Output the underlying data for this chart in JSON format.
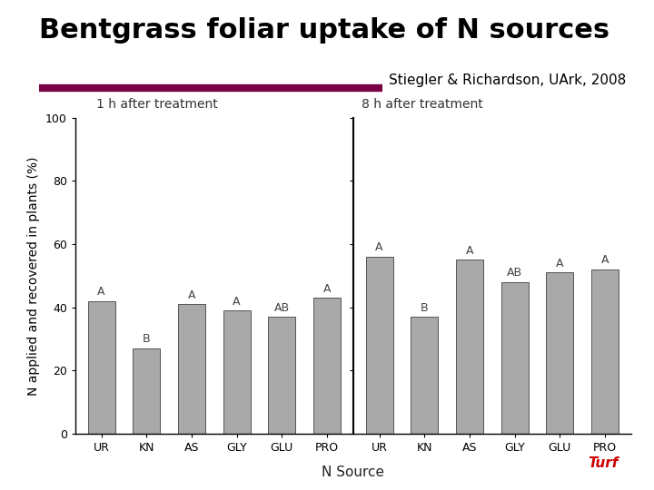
{
  "title": "Bentgrass foliar uptake of N sources",
  "subtitle": "Stiegler & Richardson, UArk, 2008",
  "ylabel": "N applied and recovered in plants (%)",
  "xlabel": "N Source",
  "panel1_label": "1 h after treatment",
  "panel2_label": "8 h after treatment",
  "categories": [
    "UR",
    "KN",
    "AS",
    "GLY",
    "GLU",
    "PRO"
  ],
  "values_1h": [
    42,
    27,
    41,
    39,
    37,
    43
  ],
  "values_8h": [
    56,
    37,
    55,
    48,
    51,
    52
  ],
  "letters_1h": [
    "A",
    "B",
    "A",
    "A",
    "AB",
    "A"
  ],
  "letters_8h": [
    "A",
    "B",
    "A",
    "AB",
    "A",
    "A"
  ],
  "bar_color": "#a9a9a9",
  "bar_edge_color": "#555555",
  "ylim": [
    0,
    100
  ],
  "yticks": [
    0,
    20,
    40,
    60,
    80,
    100
  ],
  "title_fontsize": 22,
  "subtitle_fontsize": 11,
  "axis_label_fontsize": 10,
  "tick_fontsize": 9,
  "letter_fontsize": 9,
  "panel_label_fontsize": 10,
  "bar_width": 0.6,
  "title_color": "#000000",
  "subtitle_color": "#000000",
  "divider_color": "#7a0045",
  "background_color": "#ffffff"
}
